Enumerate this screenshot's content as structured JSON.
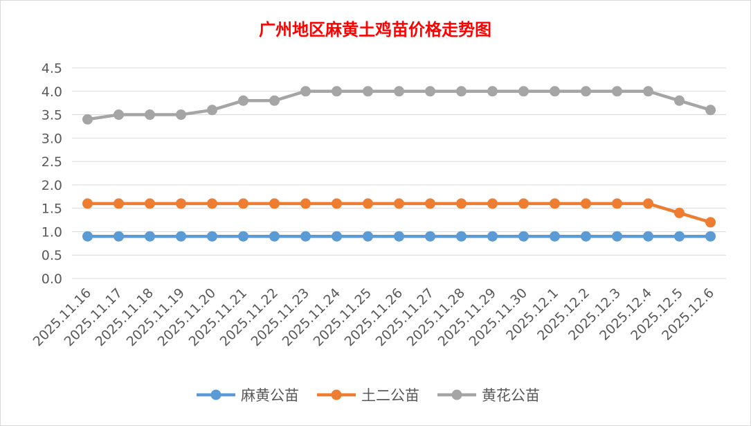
{
  "chart_data": {
    "type": "line",
    "title": "广州地区麻黄土鸡苗价格走势图",
    "xlabel": "",
    "ylabel": "",
    "categories": [
      "2025.11.16",
      "2025.11.17",
      "2025.11.18",
      "2025.11.19",
      "2025.11.20",
      "2025.11.21",
      "2025.11.22",
      "2025.11.23",
      "2025.11.24",
      "2025.11.25",
      "2025.11.26",
      "2025.11.27",
      "2025.11.28",
      "2025.11.29",
      "2025.11.30",
      "2025.12.1",
      "2025.12.2",
      "2025.12.3",
      "2025.12.4",
      "2025.12.5",
      "2025.12.6"
    ],
    "ylim": [
      0,
      4.5
    ],
    "yticks": [
      "0.0",
      "0.5",
      "1.0",
      "1.5",
      "2.0",
      "2.5",
      "3.0",
      "3.5",
      "4.0",
      "4.5"
    ],
    "grid": true,
    "legend_position": "bottom",
    "series": [
      {
        "name": "麻黄公苗",
        "color": "#5b9bd5",
        "values": [
          0.9,
          0.9,
          0.9,
          0.9,
          0.9,
          0.9,
          0.9,
          0.9,
          0.9,
          0.9,
          0.9,
          0.9,
          0.9,
          0.9,
          0.9,
          0.9,
          0.9,
          0.9,
          0.9,
          0.9,
          0.9
        ]
      },
      {
        "name": "土二公苗",
        "color": "#ed7d31",
        "values": [
          1.6,
          1.6,
          1.6,
          1.6,
          1.6,
          1.6,
          1.6,
          1.6,
          1.6,
          1.6,
          1.6,
          1.6,
          1.6,
          1.6,
          1.6,
          1.6,
          1.6,
          1.6,
          1.6,
          1.4,
          1.2
        ]
      },
      {
        "name": "黄花公苗",
        "color": "#a5a5a5",
        "values": [
          3.4,
          3.5,
          3.5,
          3.5,
          3.6,
          3.8,
          3.8,
          4.0,
          4.0,
          4.0,
          4.0,
          4.0,
          4.0,
          4.0,
          4.0,
          4.0,
          4.0,
          4.0,
          4.0,
          3.8,
          3.6
        ]
      }
    ]
  }
}
